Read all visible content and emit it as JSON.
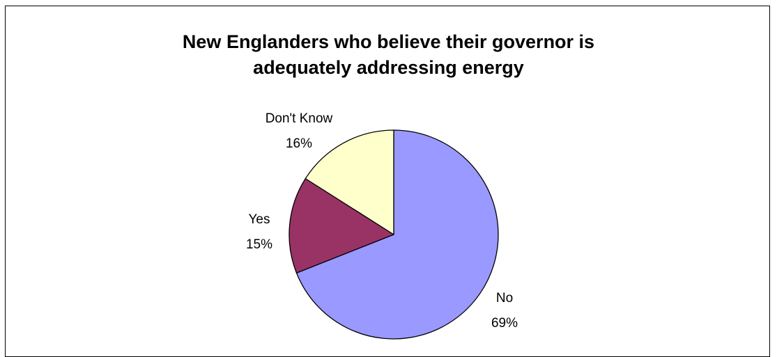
{
  "chart_data": {
    "type": "pie",
    "title": [
      "New Englanders who believe their governor is",
      "adequately addressing energy"
    ],
    "slices": [
      {
        "label": "No",
        "value": 69,
        "value_text": "69%",
        "color": "#9999FF"
      },
      {
        "label": "Yes",
        "value": 15,
        "value_text": "15%",
        "color": "#993366"
      },
      {
        "label": "Don't Know",
        "value": 16,
        "value_text": "16%",
        "color": "#FFFFCC"
      }
    ],
    "start_angle_deg": 0,
    "direction": "clockwise",
    "outline_color": "#000000"
  }
}
